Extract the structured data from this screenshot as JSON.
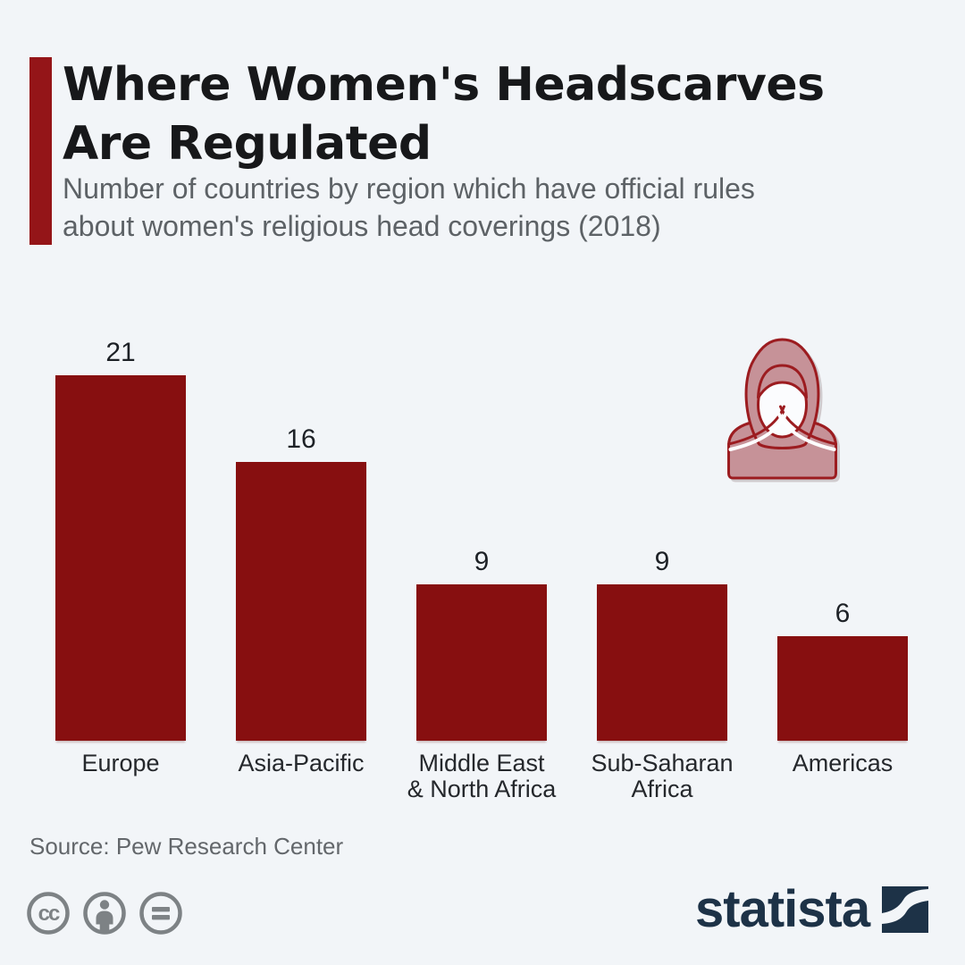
{
  "header": {
    "title": "Where Women's Headscarves\nAre Regulated",
    "subtitle": "Number of countries by region which have official rules\nabout women's religious head coverings (2018)"
  },
  "chart_data": {
    "type": "bar",
    "title": "Where Women's Headscarves Are Regulated",
    "subtitle": "Number of countries by region which have official rules about women's religious head coverings (2018)",
    "categories": [
      "Europe",
      "Asia-Pacific",
      "Middle East\n& North Africa",
      "Sub-Saharan\nAfrica",
      "Americas"
    ],
    "values": [
      21,
      16,
      9,
      9,
      6
    ],
    "xlabel": "",
    "ylabel": "",
    "ylim": [
      0,
      21
    ],
    "grid": false,
    "legend": false,
    "bar_color": "#870f10",
    "value_label_color": "#1d2126"
  },
  "icons": {
    "headscarf_icon": "woman-in-hijab",
    "license_icons": [
      "creative-commons",
      "attribution-person",
      "no-derivatives-equals"
    ],
    "brand_mark": "statista-swoosh-square"
  },
  "colors": {
    "background": "#f2f5f8",
    "accent_bar": "#941518",
    "bar": "#870f10",
    "icon_fill": "#c69298",
    "icon_stroke": "#9c1c20",
    "brand_navy": "#1d3247",
    "license_gray": "#7d8285",
    "subtitle_gray": "#5d6266"
  },
  "footer": {
    "source": "Source: Pew Research Center",
    "license_cc_label": "cc",
    "brand_wordmark": "statista"
  }
}
